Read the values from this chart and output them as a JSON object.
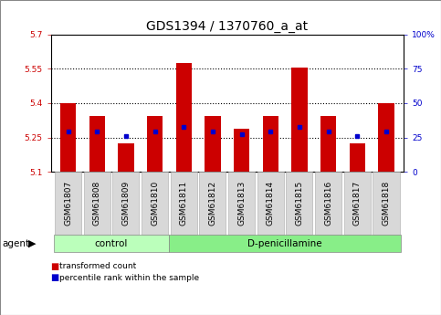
{
  "title": "GDS1394 / 1370760_a_at",
  "samples": [
    "GSM61807",
    "GSM61808",
    "GSM61809",
    "GSM61810",
    "GSM61811",
    "GSM61812",
    "GSM61813",
    "GSM61814",
    "GSM61815",
    "GSM61816",
    "GSM61817",
    "GSM61818"
  ],
  "red_values": [
    5.4,
    5.345,
    5.225,
    5.345,
    5.575,
    5.345,
    5.29,
    5.345,
    5.555,
    5.345,
    5.225,
    5.4
  ],
  "blue_values": [
    5.275,
    5.275,
    5.255,
    5.275,
    5.295,
    5.275,
    5.265,
    5.275,
    5.295,
    5.275,
    5.255,
    5.275
  ],
  "ymin": 5.1,
  "ymax": 5.7,
  "yticks": [
    5.1,
    5.25,
    5.4,
    5.55,
    5.7
  ],
  "ytick_labels": [
    "5.1",
    "5.25",
    "5.4",
    "5.55",
    "5.7"
  ],
  "right_yticks": [
    0,
    25,
    50,
    75,
    100
  ],
  "right_ytick_labels": [
    "0",
    "25",
    "50",
    "75",
    "100%"
  ],
  "gridlines": [
    5.25,
    5.4,
    5.55
  ],
  "baseline": 5.1,
  "control_count": 4,
  "bar_width": 0.55,
  "red_color": "#cc0000",
  "blue_color": "#0000cc",
  "control_label": "control",
  "treatment_label": "D-penicillamine",
  "agent_label": "agent",
  "legend_red": "transformed count",
  "legend_blue": "percentile rank within the sample",
  "group_bg_control": "#bbffbb",
  "group_bg_treatment": "#88ee88",
  "tick_bg": "#d8d8d8",
  "title_fontsize": 10,
  "tick_fontsize": 6.5,
  "label_fontsize": 8
}
